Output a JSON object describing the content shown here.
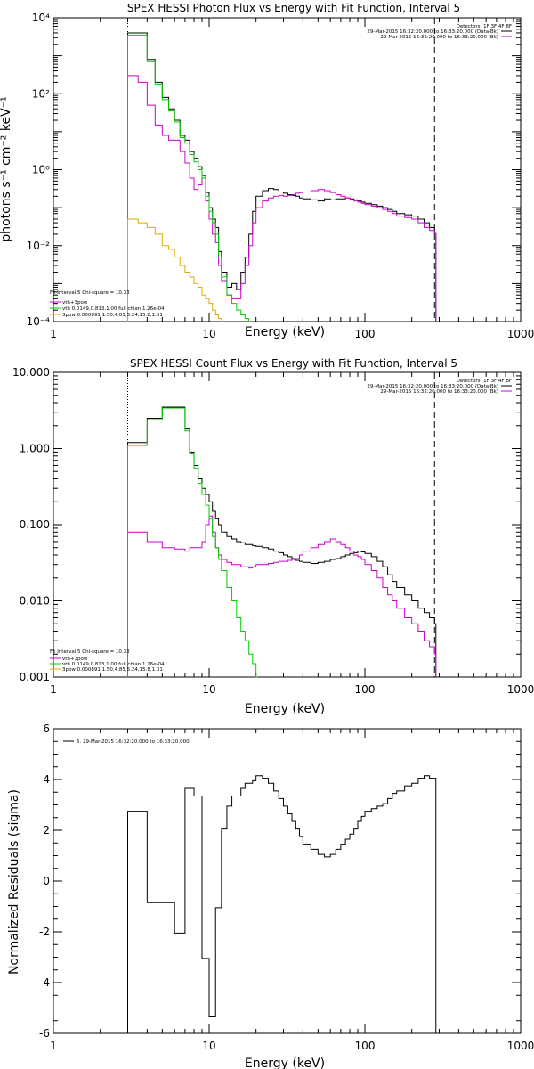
{
  "chart_data": [
    {
      "type": "line",
      "title": "SPEX HESSI Photon Flux vs Energy with Fit Function, Interval 5",
      "xlabel": "Energy (keV)",
      "ylabel": "photons s⁻¹ cm⁻² keV⁻¹",
      "xscale": "log",
      "yscale": "log",
      "xlim": [
        1,
        1000
      ],
      "ylim": [
        0.0001,
        10000
      ],
      "x_ticks": [
        "1",
        "10",
        "100",
        "1000"
      ],
      "y_ticks": [
        "10⁻⁴",
        "10⁻²",
        "10⁰",
        "10²",
        "10⁴"
      ],
      "vlines": [
        {
          "x": 3,
          "style": "dotted"
        },
        {
          "x": 280,
          "style": "dashed"
        }
      ],
      "legend_top_right": [
        "Detectors: 1F 3F 4F 8F",
        "29-Mar-2015 16:32:20.000 to 16:33:20.000 (Data-Bk)",
        "29-Mar-2015 16:32:20.000 to 16:33:20.000 (Bk)"
      ],
      "legend_bottom_left": [
        "Fit Interval 5   Chi-square = 10.33",
        "vth+3pow",
        "vth 0.0149,0.813,1.00  full chian 1.26e-04",
        "3pow 0.000891,1.50,4.85,5.24,15.8,1.31"
      ],
      "series": [
        {
          "name": "Data-Bk",
          "color": "#000000",
          "x": [
            3,
            3.5,
            4,
            4.5,
            5,
            5.5,
            6,
            6.5,
            7,
            7.5,
            8,
            8.5,
            9,
            9.5,
            10,
            10.5,
            11,
            11.5,
            12,
            13,
            14,
            15,
            16,
            17,
            18,
            19,
            20,
            22,
            24,
            26,
            28,
            30,
            32,
            34,
            36,
            38,
            40,
            45,
            50,
            55,
            60,
            65,
            70,
            75,
            80,
            85,
            90,
            95,
            100,
            110,
            120,
            130,
            140,
            150,
            160,
            180,
            200,
            220,
            240,
            260,
            280
          ],
          "y": [
            4000,
            4000,
            800,
            200,
            80,
            40,
            20,
            8,
            6,
            3,
            2,
            1.2,
            0.7,
            0.25,
            0.1,
            0.05,
            0.03,
            0.007,
            0.002,
            0.0008,
            0.001,
            0.0007,
            0.002,
            0.005,
            0.02,
            0.08,
            0.2,
            0.28,
            0.32,
            0.3,
            0.26,
            0.24,
            0.22,
            0.21,
            0.2,
            0.18,
            0.17,
            0.16,
            0.15,
            0.17,
            0.16,
            0.17,
            0.17,
            0.18,
            0.17,
            0.16,
            0.15,
            0.14,
            0.13,
            0.12,
            0.11,
            0.1,
            0.09,
            0.08,
            0.07,
            0.065,
            0.06,
            0.05,
            0.04,
            0.03,
            0.022
          ]
        },
        {
          "name": "vth+3pow",
          "color": "#cc00cc",
          "x": [
            3,
            3.5,
            4,
            4.5,
            5,
            5.5,
            6,
            6.5,
            7,
            7.5,
            8,
            8.5,
            9,
            9.5,
            10,
            10.5,
            11,
            11.5,
            12,
            13,
            14,
            15,
            16,
            17,
            18,
            19,
            20,
            22,
            24,
            26,
            28,
            30,
            32,
            34,
            36,
            38,
            40,
            45,
            50,
            55,
            60,
            65,
            70,
            75,
            80,
            85,
            90,
            95,
            100,
            110,
            120,
            130,
            140,
            150,
            160,
            180,
            200,
            220,
            240,
            260,
            280
          ],
          "y": [
            300,
            200,
            50,
            15,
            8,
            6,
            6,
            3,
            1.5,
            0.6,
            0.3,
            0.4,
            0.6,
            0.15,
            0.05,
            0.02,
            0.012,
            0.003,
            0.0012,
            0.0005,
            0.0004,
            0.0004,
            0.001,
            0.003,
            0.01,
            0.04,
            0.1,
            0.15,
            0.18,
            0.2,
            0.21,
            0.2,
            0.21,
            0.22,
            0.24,
            0.25,
            0.26,
            0.28,
            0.3,
            0.28,
            0.25,
            0.22,
            0.2,
            0.18,
            0.16,
            0.15,
            0.14,
            0.13,
            0.12,
            0.11,
            0.1,
            0.09,
            0.08,
            0.07,
            0.06,
            0.055,
            0.05,
            0.04,
            0.03,
            0.025,
            0.02
          ]
        },
        {
          "name": "vth",
          "color": "#00cc00",
          "x": [
            3,
            3.5,
            4,
            4.5,
            5,
            5.5,
            6,
            6.5,
            7,
            7.5,
            8,
            8.5,
            9,
            9.5,
            10,
            10.5,
            11,
            11.5,
            12,
            13,
            14,
            15,
            16,
            17,
            18
          ],
          "y": [
            3500,
            3500,
            700,
            180,
            70,
            35,
            18,
            7,
            5,
            2.5,
            1.6,
            1,
            0.6,
            0.2,
            0.08,
            0.04,
            0.02,
            0.005,
            0.0015,
            0.0005,
            0.0003,
            0.0002,
            0.00015,
            0.00012,
            0.0001
          ]
        },
        {
          "name": "3pow",
          "color": "#ddaa00",
          "x": [
            3,
            3.5,
            4,
            4.5,
            5,
            5.5,
            6,
            6.5,
            7,
            7.5,
            8,
            8.5,
            9,
            9.5,
            10,
            10.5,
            11,
            11.5,
            12
          ],
          "y": [
            0.05,
            0.04,
            0.03,
            0.02,
            0.01,
            0.008,
            0.005,
            0.003,
            0.002,
            0.0015,
            0.001,
            0.0008,
            0.0005,
            0.0004,
            0.0003,
            0.0002,
            0.00015,
            0.00012,
            0.0001
          ]
        }
      ]
    },
    {
      "type": "line",
      "title": "SPEX HESSI Count Flux vs Energy with Fit Function, Interval 5",
      "xlabel": "Energy (keV)",
      "ylabel": "",
      "xscale": "log",
      "yscale": "log",
      "xlim": [
        1,
        1000
      ],
      "ylim": [
        0.001,
        10
      ],
      "x_ticks": [
        "1",
        "10",
        "100",
        "1000"
      ],
      "y_ticks": [
        "0.001",
        "0.010",
        "0.100",
        "1.000",
        "10.000"
      ],
      "vlines": [
        {
          "x": 3,
          "style": "dotted"
        },
        {
          "x": 280,
          "style": "dashed"
        }
      ],
      "legend_top_right": [
        "Detectors: 1F 3F 4F 8F",
        "29-Mar-2015 16:32:20.000 to 16:33:20.000 (Data-Bk)",
        "29-Mar-2015 16:32:20.000 to 16:33:20.000 (Bk)"
      ],
      "legend_bottom_left": [
        "Fit Interval 5   Chi-square = 10.33",
        "vth+3pow",
        "vth 0.0149,0.813,1.00  full chian 1.26e-04",
        "3pow 0.000891,1.50,4.85,5.24,15.8,1.31"
      ],
      "series": [
        {
          "name": "Data-Bk",
          "color": "#000000",
          "x": [
            3,
            3.5,
            4,
            4.5,
            5,
            5.5,
            6,
            6.5,
            7,
            7.5,
            8,
            8.5,
            9,
            9.5,
            10,
            10.5,
            11,
            11.5,
            12,
            13,
            14,
            15,
            16,
            17,
            18,
            19,
            20,
            22,
            24,
            26,
            28,
            30,
            32,
            34,
            36,
            38,
            40,
            45,
            50,
            55,
            60,
            65,
            70,
            75,
            80,
            85,
            90,
            95,
            100,
            110,
            120,
            130,
            140,
            150,
            160,
            180,
            200,
            220,
            240,
            260,
            280
          ],
          "y": [
            1.2,
            1.2,
            2.5,
            2.5,
            3.5,
            3.5,
            3.5,
            3.5,
            1.8,
            0.9,
            0.6,
            0.4,
            0.3,
            0.25,
            0.2,
            0.15,
            0.12,
            0.1,
            0.08,
            0.07,
            0.065,
            0.06,
            0.058,
            0.055,
            0.055,
            0.053,
            0.052,
            0.05,
            0.048,
            0.045,
            0.043,
            0.04,
            0.038,
            0.036,
            0.034,
            0.033,
            0.032,
            0.031,
            0.032,
            0.033,
            0.035,
            0.036,
            0.038,
            0.04,
            0.042,
            0.043,
            0.045,
            0.044,
            0.042,
            0.038,
            0.033,
            0.028,
            0.022,
            0.018,
            0.015,
            0.012,
            0.01,
            0.008,
            0.007,
            0.006,
            0.005
          ]
        },
        {
          "name": "vth+3pow",
          "color": "#cc00cc",
          "x": [
            3,
            3.5,
            4,
            4.5,
            5,
            5.5,
            6,
            6.5,
            7,
            7.5,
            8,
            8.5,
            9,
            9.5,
            10,
            10.5,
            11,
            11.5,
            12,
            13,
            14,
            15,
            16,
            17,
            18,
            19,
            20,
            22,
            24,
            26,
            28,
            30,
            32,
            34,
            36,
            38,
            40,
            45,
            50,
            55,
            60,
            65,
            70,
            75,
            80,
            85,
            90,
            95,
            100,
            110,
            120,
            130,
            140,
            150,
            160,
            180,
            200,
            220,
            240,
            260,
            280
          ],
          "y": [
            0.08,
            0.08,
            0.06,
            0.06,
            0.05,
            0.05,
            0.048,
            0.048,
            0.045,
            0.05,
            0.05,
            0.05,
            0.06,
            0.1,
            0.13,
            0.08,
            0.05,
            0.04,
            0.035,
            0.032,
            0.03,
            0.03,
            0.028,
            0.028,
            0.027,
            0.028,
            0.03,
            0.03,
            0.031,
            0.032,
            0.033,
            0.033,
            0.034,
            0.035,
            0.036,
            0.04,
            0.045,
            0.05,
            0.055,
            0.06,
            0.065,
            0.06,
            0.055,
            0.05,
            0.045,
            0.04,
            0.038,
            0.035,
            0.03,
            0.025,
            0.02,
            0.015,
            0.012,
            0.01,
            0.008,
            0.006,
            0.005,
            0.004,
            0.003,
            0.0025,
            0.002
          ]
        },
        {
          "name": "vth",
          "color": "#00cc00",
          "x": [
            3,
            3.5,
            4,
            4.5,
            5,
            5.5,
            6,
            6.5,
            7,
            7.5,
            8,
            8.5,
            9,
            9.5,
            10,
            10.5,
            11,
            11.5,
            12,
            13,
            14,
            15,
            16,
            17,
            18,
            19,
            20
          ],
          "y": [
            1.1,
            1.1,
            2.4,
            2.4,
            3.4,
            3.4,
            3.4,
            3.4,
            1.7,
            0.85,
            0.55,
            0.35,
            0.25,
            0.18,
            0.12,
            0.07,
            0.05,
            0.035,
            0.025,
            0.015,
            0.01,
            0.006,
            0.004,
            0.003,
            0.002,
            0.0015,
            0.001
          ]
        }
      ]
    },
    {
      "type": "line",
      "title": "",
      "xlabel": "Energy (keV)",
      "ylabel": "Normalized Residuals (sigma)",
      "xscale": "log",
      "yscale": "linear",
      "xlim": [
        1,
        1000
      ],
      "ylim": [
        -6,
        6
      ],
      "x_ticks": [
        "1",
        "10",
        "100",
        "1000"
      ],
      "y_ticks": [
        "-6",
        "-4",
        "-2",
        "0",
        "2",
        "4",
        "6"
      ],
      "legend_top_left": [
        "5. 29-Mar-2015 16:32:20.000 to 16:33:20.000"
      ],
      "series": [
        {
          "name": "residuals",
          "color": "#000000",
          "x": [
            3,
            3.5,
            4,
            4.5,
            5,
            5.5,
            6,
            6.5,
            7,
            7.5,
            8,
            8.5,
            9,
            9.5,
            10,
            10.5,
            11,
            11.5,
            12,
            13,
            14,
            15,
            16,
            17,
            18,
            19,
            20,
            22,
            24,
            26,
            28,
            30,
            32,
            34,
            36,
            38,
            40,
            45,
            50,
            55,
            60,
            65,
            70,
            75,
            80,
            85,
            90,
            95,
            100,
            110,
            120,
            130,
            140,
            150,
            160,
            180,
            200,
            220,
            240,
            260,
            280
          ],
          "y": [
            2.75,
            2.75,
            -0.85,
            -0.85,
            -0.85,
            -0.85,
            -2.05,
            -2.05,
            3.65,
            3.65,
            3.35,
            3.35,
            -3.05,
            -3.05,
            -5.35,
            -5.35,
            -1.05,
            -1.05,
            2.05,
            2.95,
            3.35,
            3.35,
            3.65,
            3.85,
            3.85,
            3.95,
            4.15,
            4.05,
            3.85,
            3.55,
            3.25,
            2.95,
            2.65,
            2.35,
            2.05,
            1.75,
            1.45,
            1.25,
            1.05,
            0.95,
            1.05,
            1.25,
            1.45,
            1.65,
            1.85,
            2.05,
            2.35,
            2.55,
            2.75,
            2.85,
            2.95,
            3.05,
            3.25,
            3.45,
            3.55,
            3.75,
            3.85,
            4.05,
            4.15,
            4.05,
            4.05
          ]
        }
      ]
    }
  ]
}
